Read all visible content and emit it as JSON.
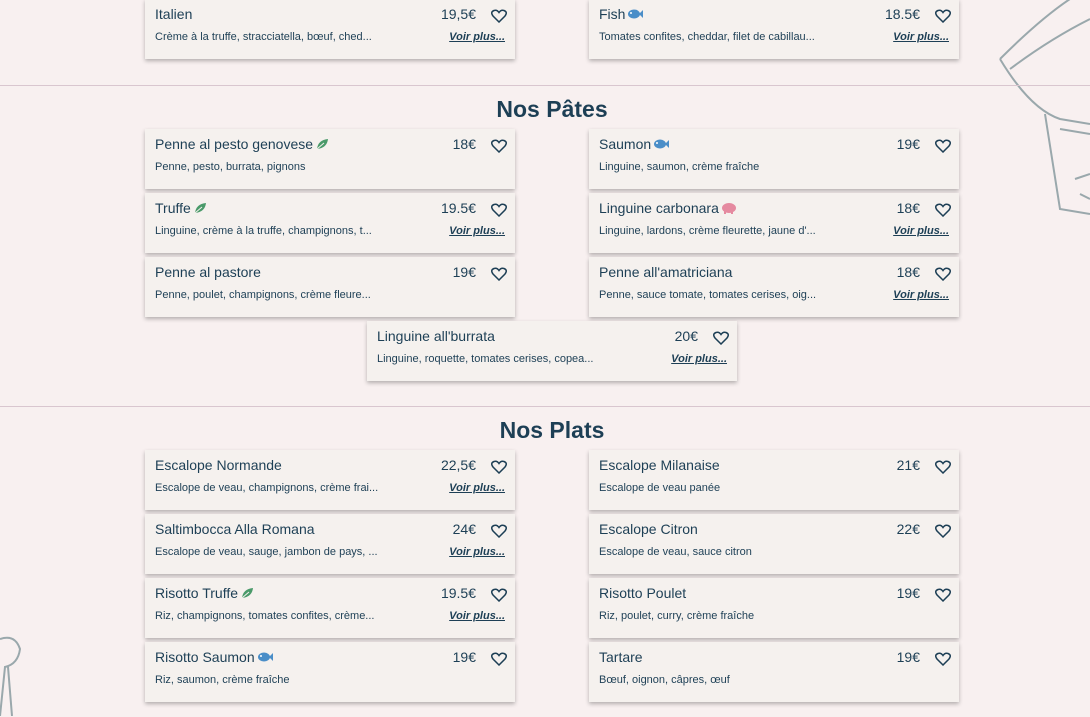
{
  "sections": [
    {
      "items": [
        {
          "name": "Italien",
          "price": "19,5€",
          "description": "Crème à la truffe, stracciatella, bœuf, ched...",
          "more": "Voir plus..."
        },
        {
          "name": "Fish",
          "icon": "fish",
          "price": "18.5€",
          "description": "Tomates confites, cheddar, filet de cabillau...",
          "more": "Voir plus..."
        }
      ]
    },
    {
      "title": "Nos Pâtes",
      "items": [
        {
          "name": "Penne al pesto genovese",
          "icon": "leaf",
          "price": "18€",
          "description": "Penne, pesto, burrata, pignons"
        },
        {
          "name": "Saumon",
          "icon": "fish",
          "price": "19€",
          "description": "Linguine, saumon, crème fraîche"
        },
        {
          "name": "Truffe",
          "icon": "leaf",
          "price": "19.5€",
          "description": "Linguine, crème à la truffe, champignons, t...",
          "more": "Voir plus..."
        },
        {
          "name": "Linguine carbonara",
          "icon": "pig",
          "price": "18€",
          "description": "Linguine, lardons, crème fleurette, jaune d'...",
          "more": "Voir plus..."
        },
        {
          "name": "Penne al pastore",
          "price": "19€",
          "description": "Penne, poulet, champignons, crème fleure..."
        },
        {
          "name": "Penne all'amatriciana",
          "price": "18€",
          "description": "Penne, sauce tomate, tomates cerises, oig...",
          "more": "Voir plus..."
        },
        {
          "name": "Linguine all'burrata",
          "price": "20€",
          "description": "Linguine, roquette, tomates cerises, copea...",
          "more": "Voir plus..."
        }
      ]
    },
    {
      "title": "Nos Plats",
      "items": [
        {
          "name": "Escalope Normande",
          "price": "22,5€",
          "description": "Escalope de veau, champignons, crème frai...",
          "more": "Voir plus..."
        },
        {
          "name": "Escalope Milanaise",
          "price": "21€",
          "description": "Escalope de veau panée"
        },
        {
          "name": "Saltimbocca Alla Romana",
          "price": "24€",
          "description": "Escalope de veau, sauge, jambon de pays, ...",
          "more": "Voir plus..."
        },
        {
          "name": "Escalope Citron",
          "price": "22€",
          "description": "Escalope de veau, sauce citron"
        },
        {
          "name": "Risotto Truffe",
          "icon": "leaf",
          "price": "19.5€",
          "description": "Riz, champignons, tomates confites, crème...",
          "more": "Voir plus..."
        },
        {
          "name": "Risotto Poulet",
          "price": "19€",
          "description": "Riz, poulet, curry, crème fraîche"
        },
        {
          "name": "Risotto Saumon",
          "icon": "fish",
          "price": "19€",
          "description": "Riz, saumon, crème fraîche"
        },
        {
          "name": "Tartare",
          "price": "19€",
          "description": "Bœuf, oignon, câpres, œuf"
        }
      ]
    }
  ]
}
